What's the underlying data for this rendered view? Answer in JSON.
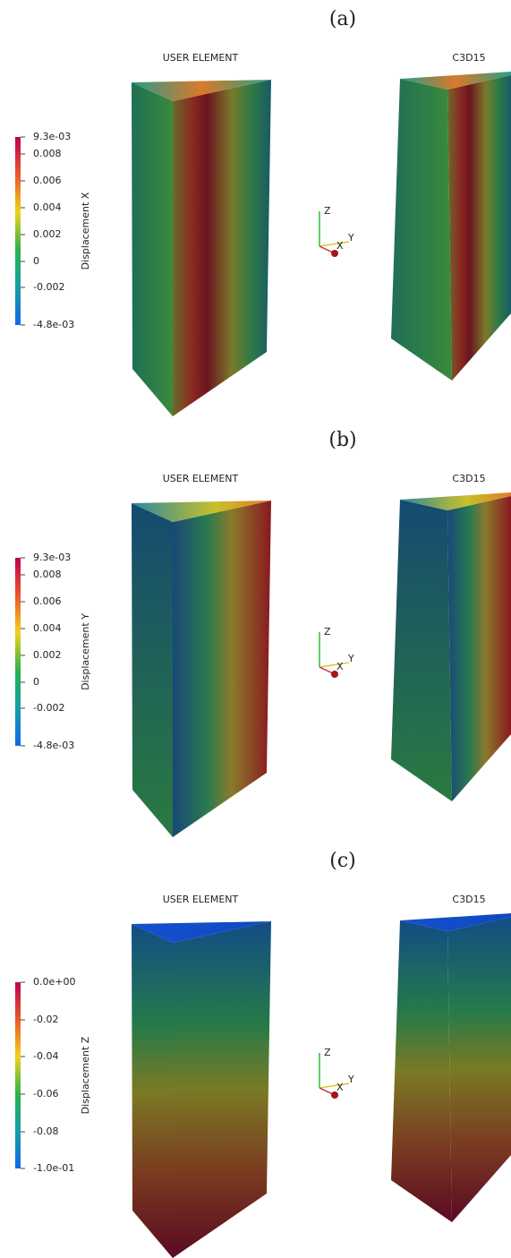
{
  "panels": [
    {
      "label": "(a)",
      "left_title": "USER ELEMENT",
      "right_title": "C3D15",
      "colorbar": {
        "title": "Displacement X",
        "ticks": [
          "9.3e-03",
          "0.008",
          "0.006",
          "0.004",
          "0.002",
          "0",
          "-0.002",
          "-4.8e-03"
        ]
      },
      "axes": {
        "z": "Z",
        "x": "X",
        "y": "Y"
      }
    },
    {
      "label": "(b)",
      "left_title": "USER ELEMENT",
      "right_title": "C3D15",
      "colorbar": {
        "title": "Displacement Y",
        "ticks": [
          "9.3e-03",
          "0.008",
          "0.006",
          "0.004",
          "0.002",
          "0",
          "-0.002",
          "-4.8e-03"
        ]
      },
      "axes": {
        "z": "Z",
        "x": "X",
        "y": "Y"
      }
    },
    {
      "label": "(c)",
      "left_title": "USER ELEMENT",
      "right_title": "C3D15",
      "colorbar": {
        "title": "Displacement Z",
        "ticks": [
          "0.0e+00",
          "-0.02",
          "-0.04",
          "-0.06",
          "-0.08",
          "-1.0e-01"
        ]
      },
      "axes": {
        "z": "Z",
        "x": "X",
        "y": "Y"
      }
    }
  ]
}
